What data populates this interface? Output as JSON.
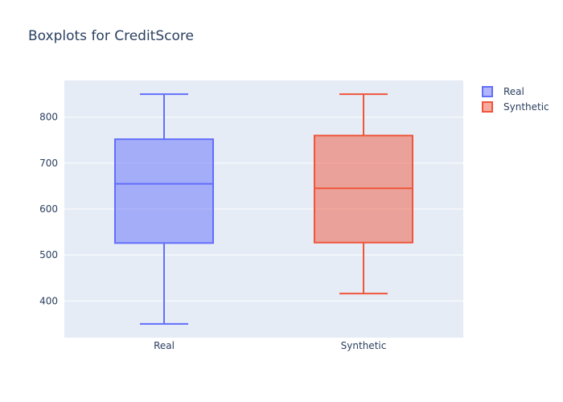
{
  "chart_data": {
    "type": "box",
    "title": "Boxplots for CreditScore",
    "xlabel": "",
    "ylabel": "",
    "ylim": [
      320,
      880
    ],
    "yticks": [
      400,
      500,
      600,
      700,
      800
    ],
    "categories": [
      "Real",
      "Synthetic"
    ],
    "grid": true,
    "legend_position": "top-right",
    "series": [
      {
        "name": "Real",
        "color": "#636efa",
        "fill": "rgba(99,110,250,0.5)",
        "min": 350,
        "q1": 526,
        "median": 655,
        "q3": 752,
        "max": 850
      },
      {
        "name": "Synthetic",
        "color": "#ef553b",
        "fill": "rgba(239,85,59,0.5)",
        "min": 416,
        "q1": 527,
        "median": 645,
        "q3": 760,
        "max": 850
      }
    ]
  },
  "colors": {
    "plot_bg": "#e5ecf6",
    "grid": "#ffffff",
    "text": "#2a3f5f"
  }
}
